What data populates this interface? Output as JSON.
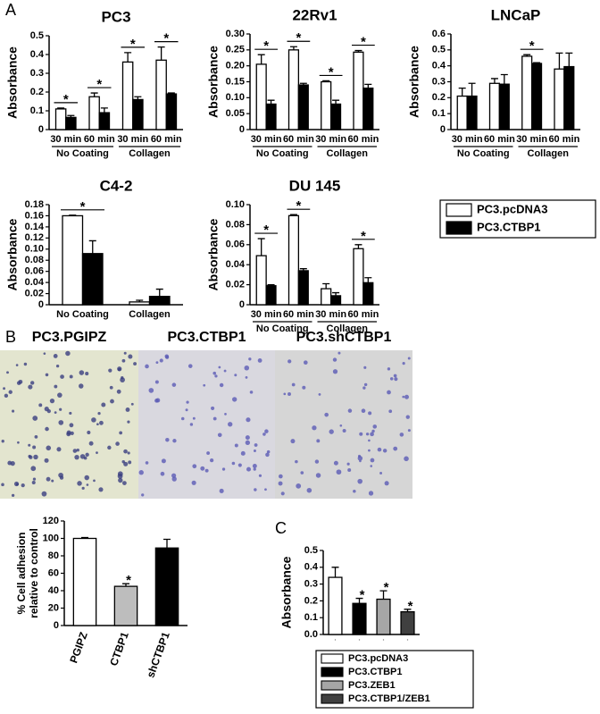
{
  "panel_labels": [
    "A",
    "B",
    "C"
  ],
  "legend": [
    {
      "name": "PC3.pcDNA3",
      "color": "#ffffff"
    },
    {
      "name": "PC3.CTBP1",
      "color": "#000000"
    }
  ],
  "image_titles": [
    "PC3.PGIPZ",
    "PC3.CTBP1",
    "PC3.shCTBP1"
  ],
  "chart_data": [
    {
      "type": "bar",
      "title": "PC3",
      "ylabel": "Absorbance",
      "categories": [
        "30 min",
        "60 min",
        "30 min",
        "60 min"
      ],
      "groups": [
        "No Coating",
        "Collagen"
      ],
      "series": [
        {
          "color": "#ffffff",
          "values": [
            0.11,
            0.175,
            0.36,
            0.37
          ],
          "errors": [
            0.005,
            0.02,
            0.05,
            0.07
          ]
        },
        {
          "color": "#000000",
          "values": [
            0.065,
            0.09,
            0.16,
            0.19
          ],
          "errors": [
            0.01,
            0.025,
            0.015,
            0.005
          ]
        }
      ],
      "stars": [
        "*",
        "*",
        "*",
        "*"
      ],
      "ylim": [
        0,
        0.5
      ],
      "yticks": [
        0,
        0.1,
        0.2,
        0.3,
        0.4,
        0.5
      ]
    },
    {
      "type": "bar",
      "title": "22Rv1",
      "ylabel": "Absorbance",
      "categories": [
        "30 min",
        "60 min",
        "30 min",
        "60 min"
      ],
      "groups": [
        "No Coating",
        "Collagen"
      ],
      "series": [
        {
          "color": "#ffffff",
          "values": [
            0.205,
            0.25,
            0.15,
            0.243
          ],
          "errors": [
            0.03,
            0.01,
            0.003,
            0.005
          ]
        },
        {
          "color": "#000000",
          "values": [
            0.08,
            0.14,
            0.08,
            0.13
          ],
          "errors": [
            0.012,
            0.005,
            0.012,
            0.012
          ]
        }
      ],
      "stars": [
        "*",
        "*",
        "*",
        "*"
      ],
      "ylim": [
        0,
        0.3
      ],
      "yticks": [
        0,
        0.05,
        {
          "value": 0.1,
          "label": "0.10"
        },
        0.15,
        {
          "value": 0.2,
          "label": "0.20"
        },
        0.25,
        {
          "value": 0.3,
          "label": "0.30"
        }
      ]
    },
    {
      "type": "bar",
      "title": "LNCaP",
      "ylabel": "Absorbance",
      "categories": [
        "30 min",
        "60 min",
        "30 min",
        "60 min"
      ],
      "groups": [
        "No Coating",
        "Collagen"
      ],
      "series": [
        {
          "color": "#ffffff",
          "values": [
            0.21,
            0.29,
            0.46,
            0.38
          ],
          "errors": [
            0.05,
            0.03,
            0.01,
            0.1
          ]
        },
        {
          "color": "#000000",
          "values": [
            0.21,
            0.285,
            0.415,
            0.395
          ],
          "errors": [
            0.08,
            0.06,
            0.005,
            0.085
          ]
        }
      ],
      "stars": [
        null,
        null,
        "*",
        null
      ],
      "ylim": [
        0,
        0.6
      ],
      "yticks": [
        0,
        0.1,
        0.2,
        0.3,
        0.4,
        0.5,
        0.6
      ]
    },
    {
      "type": "bar",
      "title": "C4-2",
      "ylabel": "Absorbance",
      "categories": [
        "No Coating",
        "Collagen"
      ],
      "series": [
        {
          "color": "#ffffff",
          "values": [
            0.16,
            0.005
          ],
          "errors": [
            0.001,
            0.003
          ]
        },
        {
          "color": "#000000",
          "values": [
            0.092,
            0.015
          ],
          "errors": [
            0.023,
            0.013
          ]
        }
      ],
      "stars": [
        "*",
        null
      ],
      "ylim": [
        0,
        0.18
      ],
      "yticks": [
        0,
        0.02,
        0.04,
        0.06,
        0.08,
        {
          "value": 0.1,
          "label": "0.10"
        },
        0.12,
        0.14,
        0.16,
        0.18
      ]
    },
    {
      "type": "bar",
      "title": "DU 145",
      "ylabel": "Absorbance",
      "categories": [
        "30 min",
        "60 min",
        "30 min",
        "60 min"
      ],
      "groups": [
        "No Coating",
        "Collagen"
      ],
      "series": [
        {
          "color": "#ffffff",
          "values": [
            0.049,
            0.089,
            0.016,
            0.056
          ],
          "errors": [
            0.017,
            0.001,
            0.005,
            0.004
          ]
        },
        {
          "color": "#000000",
          "values": [
            0.019,
            0.034,
            0.009,
            0.022
          ],
          "errors": [
            0.001,
            0.002,
            0.003,
            0.005
          ]
        }
      ],
      "stars": [
        "*",
        "*",
        null,
        "*"
      ],
      "ylim": [
        0,
        0.1
      ],
      "yticks": [
        0,
        0.02,
        0.04,
        0.06,
        0.08,
        {
          "value": 0.1,
          "label": "0.10"
        }
      ]
    },
    {
      "type": "bar",
      "ylabel": "% Cell adhesion relative to control",
      "categories": [
        "PGIPZ",
        "CTBP1",
        "shCTBP1"
      ],
      "rotate_labels": true,
      "series": [
        {
          "colors": [
            "#ffffff",
            "#bdbdbd",
            "#000000"
          ],
          "values": [
            100,
            45,
            89
          ],
          "errors": [
            1,
            3,
            10
          ]
        }
      ],
      "stars": [
        null,
        "*",
        null
      ],
      "ylim": [
        0,
        120
      ],
      "yticks": [
        0,
        20,
        40,
        60,
        80,
        100,
        120
      ]
    },
    {
      "type": "bar",
      "ylabel": "Absorbance",
      "categories": [
        "PC3.pcDNA3",
        "PC3.CTBP1",
        "PC3.ZEB1",
        "PC3.CTBP1/ZEB1"
      ],
      "category_legend": true,
      "series": [
        {
          "colors": [
            "#ffffff",
            "#000000",
            "#a6a6a6",
            "#404040"
          ],
          "values": [
            0.34,
            0.185,
            0.21,
            0.135
          ],
          "errors": [
            0.06,
            0.03,
            0.05,
            0.015
          ]
        }
      ],
      "stars": [
        null,
        "*",
        "*",
        "*"
      ],
      "ylim": [
        0,
        0.5
      ],
      "yticks": [
        {
          "value": 0,
          "label": "0.0"
        },
        0.1,
        0.2,
        0.3,
        0.4,
        0.5
      ]
    }
  ]
}
